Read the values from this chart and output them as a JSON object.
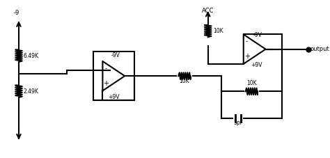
{
  "bg_color": "#ffffff",
  "line_color": "#000000",
  "line_width": 1.5,
  "fig_width": 4.74,
  "fig_height": 2.27,
  "labels": {
    "resistor1": "2.49K",
    "resistor2": "6.49K",
    "resistor3": "10K",
    "resistor4": "10K",
    "resistor5": "10K",
    "cap_label": "5pF",
    "vpos1": "+9V",
    "vneg1": "-9V",
    "vpos2": "+9V",
    "vneg2": "-9V",
    "voltage": "-9",
    "acc": "ACC",
    "output": "output"
  }
}
